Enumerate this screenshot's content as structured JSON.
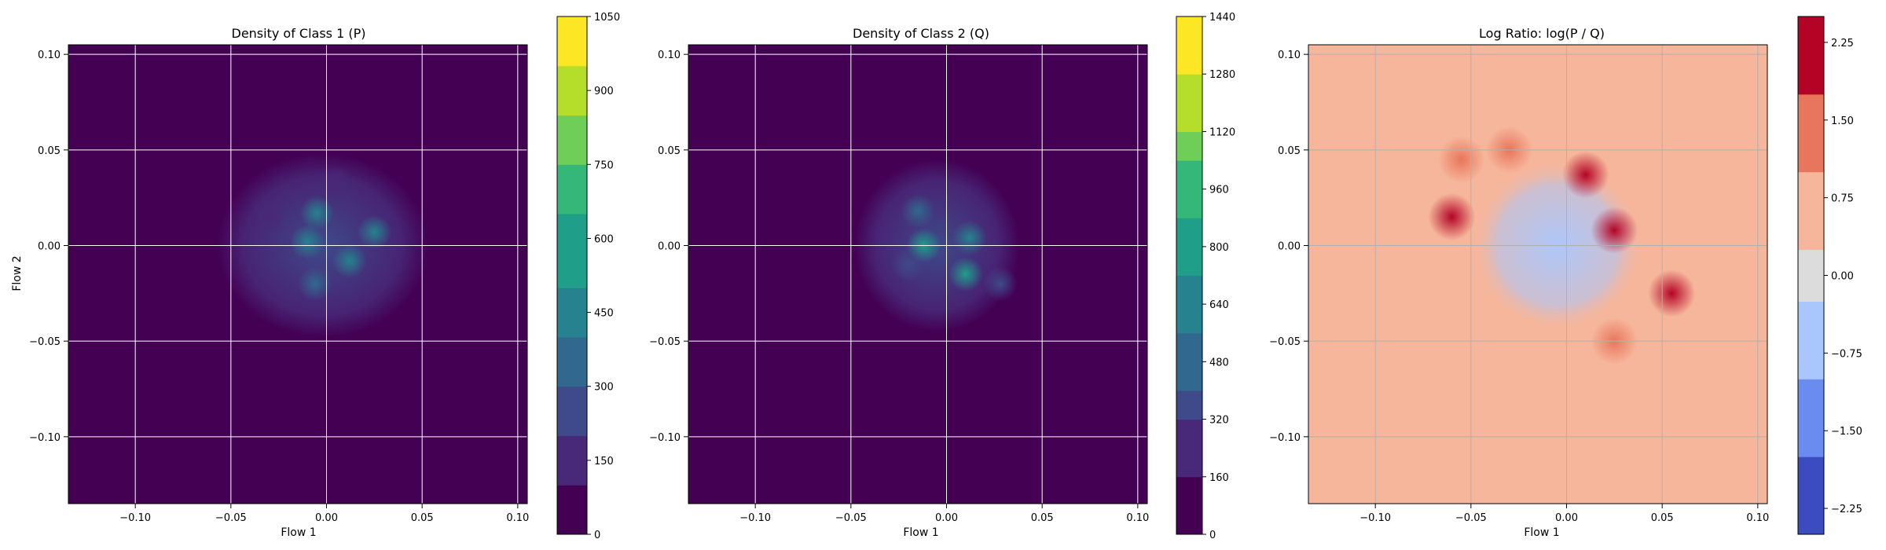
{
  "colors": {
    "viridis": [
      "#440154",
      "#482878",
      "#3e4a89",
      "#31688e",
      "#26828e",
      "#1f9e89",
      "#35b779",
      "#6ece58",
      "#b5de2b",
      "#fde725"
    ],
    "coolwarm": [
      "#3b4cc0",
      "#6a8bef",
      "#aac7fd",
      "#dddcdc",
      "#f6b69b",
      "#e8765c",
      "#b40426"
    ],
    "grid": "#ffffff",
    "grid_ratio": "#b0b0b0"
  },
  "chart_data": [
    {
      "type": "heatmap",
      "title": "Density of Class 1 (P)",
      "xlabel": "Flow 1",
      "ylabel": "Flow 2",
      "xlim": [
        -0.135,
        0.105
      ],
      "ylim": [
        -0.135,
        0.105
      ],
      "x_ticks": [
        "−0.10",
        "−0.05",
        "0.00",
        "0.05",
        "0.10"
      ],
      "y_ticks": [
        "−0.10",
        "−0.05",
        "0.00",
        "0.05",
        "0.10"
      ],
      "x_tick_values": [
        -0.1,
        -0.05,
        0.0,
        0.05,
        0.1
      ],
      "y_tick_values": [
        -0.1,
        -0.05,
        0.0,
        0.05,
        0.1
      ],
      "grid": true,
      "colormap": "viridis",
      "colorbar": {
        "min": 0,
        "max": 1050,
        "levels": 21,
        "tick_labels": [
          "0",
          "150",
          "300",
          "450",
          "600",
          "750",
          "900",
          "1050"
        ],
        "tick_values": [
          0,
          150,
          300,
          450,
          600,
          750,
          900,
          1050
        ]
      },
      "blob": {
        "center": [
          -0.002,
          0.0
        ],
        "radius": [
          0.055,
          0.048
        ]
      },
      "hotspots": [
        {
          "x": -0.005,
          "y": 0.017,
          "value": 520
        },
        {
          "x": 0.025,
          "y": 0.007,
          "value": 480
        },
        {
          "x": -0.01,
          "y": 0.002,
          "value": 430
        },
        {
          "x": 0.012,
          "y": -0.008,
          "value": 420
        },
        {
          "x": -0.006,
          "y": -0.02,
          "value": 340
        },
        {
          "x": 0.005,
          "y": 0.033,
          "value": 200
        },
        {
          "x": -0.03,
          "y": 0.015,
          "value": 200
        }
      ]
    },
    {
      "type": "heatmap",
      "title": "Density of Class 2 (Q)",
      "xlabel": "Flow 1",
      "ylabel": "",
      "xlim": [
        -0.135,
        0.105
      ],
      "ylim": [
        -0.135,
        0.105
      ],
      "x_ticks": [
        "−0.10",
        "−0.05",
        "0.00",
        "0.05",
        "0.10"
      ],
      "y_ticks": [
        "−0.10",
        "−0.05",
        "0.00",
        "0.05",
        "0.10"
      ],
      "x_tick_values": [
        -0.1,
        -0.05,
        0.0,
        0.05,
        0.1
      ],
      "y_tick_values": [
        -0.1,
        -0.05,
        0.0,
        0.05,
        0.1
      ],
      "grid": true,
      "colormap": "viridis",
      "colorbar": {
        "min": 0,
        "max": 1440,
        "levels": 18,
        "tick_labels": [
          "0",
          "160",
          "320",
          "480",
          "640",
          "800",
          "960",
          "1120",
          "1280",
          "1440"
        ],
        "tick_values": [
          0,
          160,
          320,
          480,
          640,
          800,
          960,
          1120,
          1280,
          1440
        ]
      },
      "blob": {
        "center": [
          -0.005,
          0.0
        ],
        "radius": [
          0.043,
          0.045
        ]
      },
      "hotspots": [
        {
          "x": -0.012,
          "y": 0.0,
          "value": 780
        },
        {
          "x": 0.01,
          "y": -0.015,
          "value": 760
        },
        {
          "x": -0.015,
          "y": 0.018,
          "value": 560
        },
        {
          "x": 0.012,
          "y": 0.004,
          "value": 600
        },
        {
          "x": 0.028,
          "y": -0.02,
          "value": 420
        },
        {
          "x": -0.02,
          "y": -0.01,
          "value": 380
        }
      ]
    },
    {
      "type": "heatmap",
      "title": "Log Ratio: log(P / Q)",
      "xlabel": "Flow 1",
      "ylabel": "",
      "xlim": [
        -0.135,
        0.105
      ],
      "ylim": [
        -0.135,
        0.105
      ],
      "x_ticks": [
        "−0.10",
        "−0.05",
        "0.00",
        "0.05",
        "0.10"
      ],
      "y_ticks": [
        "−0.10",
        "−0.05",
        "0.00",
        "0.05",
        "0.10"
      ],
      "x_tick_values": [
        -0.1,
        -0.05,
        0.0,
        0.05,
        0.1
      ],
      "y_tick_values": [
        -0.1,
        -0.05,
        0.0,
        0.05,
        0.1
      ],
      "grid": true,
      "colormap": "coolwarm",
      "colorbar": {
        "min": -2.5,
        "max": 2.5,
        "levels": 20,
        "tick_labels": [
          "−2.25",
          "−1.50",
          "−0.75",
          "0.00",
          "0.75",
          "1.50",
          "2.25"
        ],
        "tick_values": [
          -2.25,
          -1.5,
          -0.75,
          0.0,
          0.75,
          1.5,
          2.25
        ]
      },
      "background_value": 0.55,
      "blob": {
        "center": [
          -0.005,
          0.0
        ],
        "radius": [
          0.045,
          0.045
        ]
      },
      "blob_value": -0.6,
      "hotspots": [
        {
          "x": -0.06,
          "y": 0.015,
          "value": 2.0
        },
        {
          "x": 0.055,
          "y": -0.025,
          "value": 2.0
        },
        {
          "x": 0.01,
          "y": 0.037,
          "value": 2.2
        },
        {
          "x": -0.055,
          "y": 0.045,
          "value": 1.6
        },
        {
          "x": 0.025,
          "y": 0.008,
          "value": 1.8
        },
        {
          "x": -0.03,
          "y": 0.05,
          "value": 1.3
        },
        {
          "x": 0.025,
          "y": -0.05,
          "value": 1.2
        }
      ]
    }
  ]
}
